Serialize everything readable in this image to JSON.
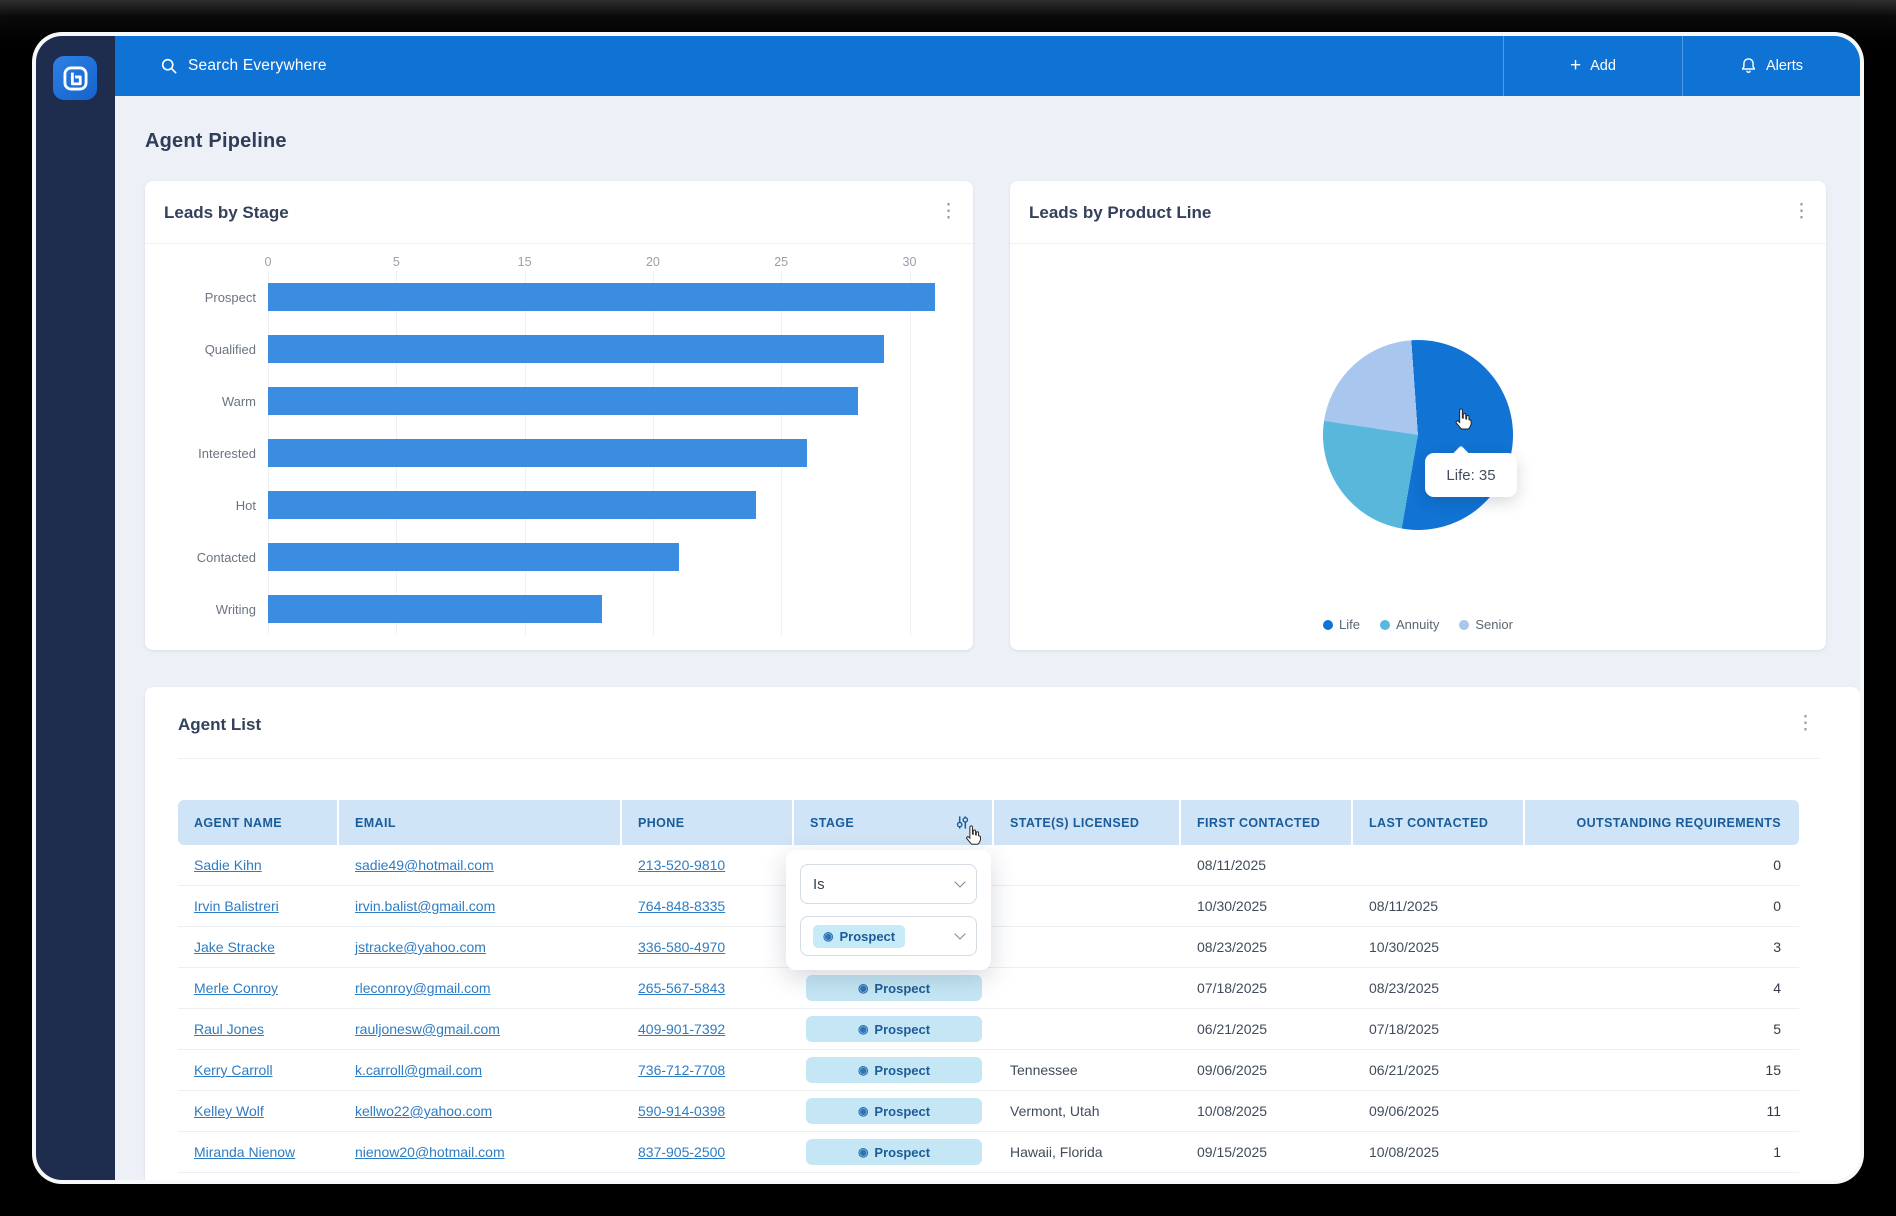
{
  "page": {
    "title": "Agent Pipeline"
  },
  "app": {
    "topbar": {
      "search_label": "Search Everywhere",
      "add_label": "Add",
      "alerts_label": "Alerts"
    }
  },
  "icons": {
    "plus": "+",
    "kebab": "⋮",
    "search": "magnifier",
    "alerts": "bell",
    "stage_filter": "sliders",
    "badge_dot": "◉",
    "logo": "app-logo",
    "cursor": "hand-pointer"
  },
  "colors": {
    "primary_blue": "#0f72d5",
    "sidebar_navy": "#1e2c4e",
    "bar_blue": "#3b8de2",
    "pie_life": "#1173d4",
    "pie_annuity": "#58b7da",
    "pie_senior": "#a9c6ef",
    "table_header_bg": "#cfe4f6",
    "table_header_text": "#1a5c9a",
    "badge_bg": "#c5e7f5",
    "link_blue": "#2e7cc3"
  },
  "cards": {
    "leads_by_stage": {
      "title": "Leads by Stage"
    },
    "leads_by_product_line": {
      "title": "Leads by Product Line"
    },
    "agent_list": {
      "title": "Agent List"
    }
  },
  "chart_data": [
    {
      "type": "bar",
      "orientation": "horizontal",
      "title": "Leads by Stage",
      "categories": [
        "Prospect",
        "Qualified",
        "Warm",
        "Interested",
        "Hot",
        "Contacted",
        "Writing"
      ],
      "values": [
        31,
        29,
        28,
        26,
        24,
        21,
        18
      ],
      "xticks": [
        0,
        5,
        15,
        20,
        25,
        30
      ],
      "xlim": [
        0,
        31
      ],
      "grid": true,
      "bar_color": "#3b8de2"
    },
    {
      "type": "pie",
      "title": "Leads by Product Line",
      "labels": [
        "Life",
        "Annuity",
        "Senior"
      ],
      "values": [
        35,
        16,
        14
      ],
      "colors": [
        "#1173d4",
        "#58b7da",
        "#a9c6ef"
      ],
      "legend_position": "bottom",
      "start_angle_deg": -4,
      "tooltip": {
        "label": "Life",
        "value": 35,
        "text": "Life: 35"
      }
    }
  ],
  "filter_popup": {
    "operator": "Is",
    "value": "Prospect"
  },
  "table": {
    "columns": [
      "AGENT NAME",
      "EMAIL",
      "PHONE",
      "STAGE",
      "STATE(S) LICENSED",
      "FIRST CONTACTED",
      "LAST CONTACTED",
      "OUTSTANDING REQUIREMENTS"
    ],
    "rows": [
      {
        "name": "Sadie Kihn",
        "email": "sadie49@hotmail.com",
        "phone": "213-520-9810",
        "stage": "",
        "states": "",
        "first_contacted": "08/11/2025",
        "last_contacted": "",
        "outstanding": "0"
      },
      {
        "name": "Irvin Balistreri",
        "email": "irvin.balist@gmail.com",
        "phone": "764-848-8335",
        "stage": "",
        "states": "",
        "first_contacted": "10/30/2025",
        "last_contacted": "08/11/2025",
        "outstanding": "0"
      },
      {
        "name": "Jake Stracke",
        "email": "jstracke@yahoo.com",
        "phone": "336-580-4970",
        "stage": "",
        "states": "",
        "first_contacted": "08/23/2025",
        "last_contacted": "10/30/2025",
        "outstanding": "3"
      },
      {
        "name": "Merle Conroy",
        "email": "rleconroy@gmail.com",
        "phone": "265-567-5843",
        "stage": "Prospect",
        "states": "",
        "first_contacted": "07/18/2025",
        "last_contacted": "08/23/2025",
        "outstanding": "4"
      },
      {
        "name": "Raul Jones",
        "email": "rauljonesw@gmail.com",
        "phone": "409-901-7392",
        "stage": "Prospect",
        "states": "",
        "first_contacted": "06/21/2025",
        "last_contacted": "07/18/2025",
        "outstanding": "5"
      },
      {
        "name": "Kerry Carroll",
        "email": "k.carroll@gmail.com",
        "phone": "736-712-7708",
        "stage": "Prospect",
        "states": "Tennessee",
        "first_contacted": "09/06/2025",
        "last_contacted": "06/21/2025",
        "outstanding": "15"
      },
      {
        "name": "Kelley Wolf",
        "email": "kellwo22@yahoo.com",
        "phone": "590-914-0398",
        "stage": "Prospect",
        "states": "Vermont, Utah",
        "first_contacted": "10/08/2025",
        "last_contacted": "09/06/2025",
        "outstanding": "11"
      },
      {
        "name": "Miranda Nienow",
        "email": "nienow20@hotmail.com",
        "phone": "837-905-2500",
        "stage": "Prospect",
        "states": "Hawaii, Florida",
        "first_contacted": "09/15/2025",
        "last_contacted": "10/08/2025",
        "outstanding": "1"
      }
    ]
  }
}
